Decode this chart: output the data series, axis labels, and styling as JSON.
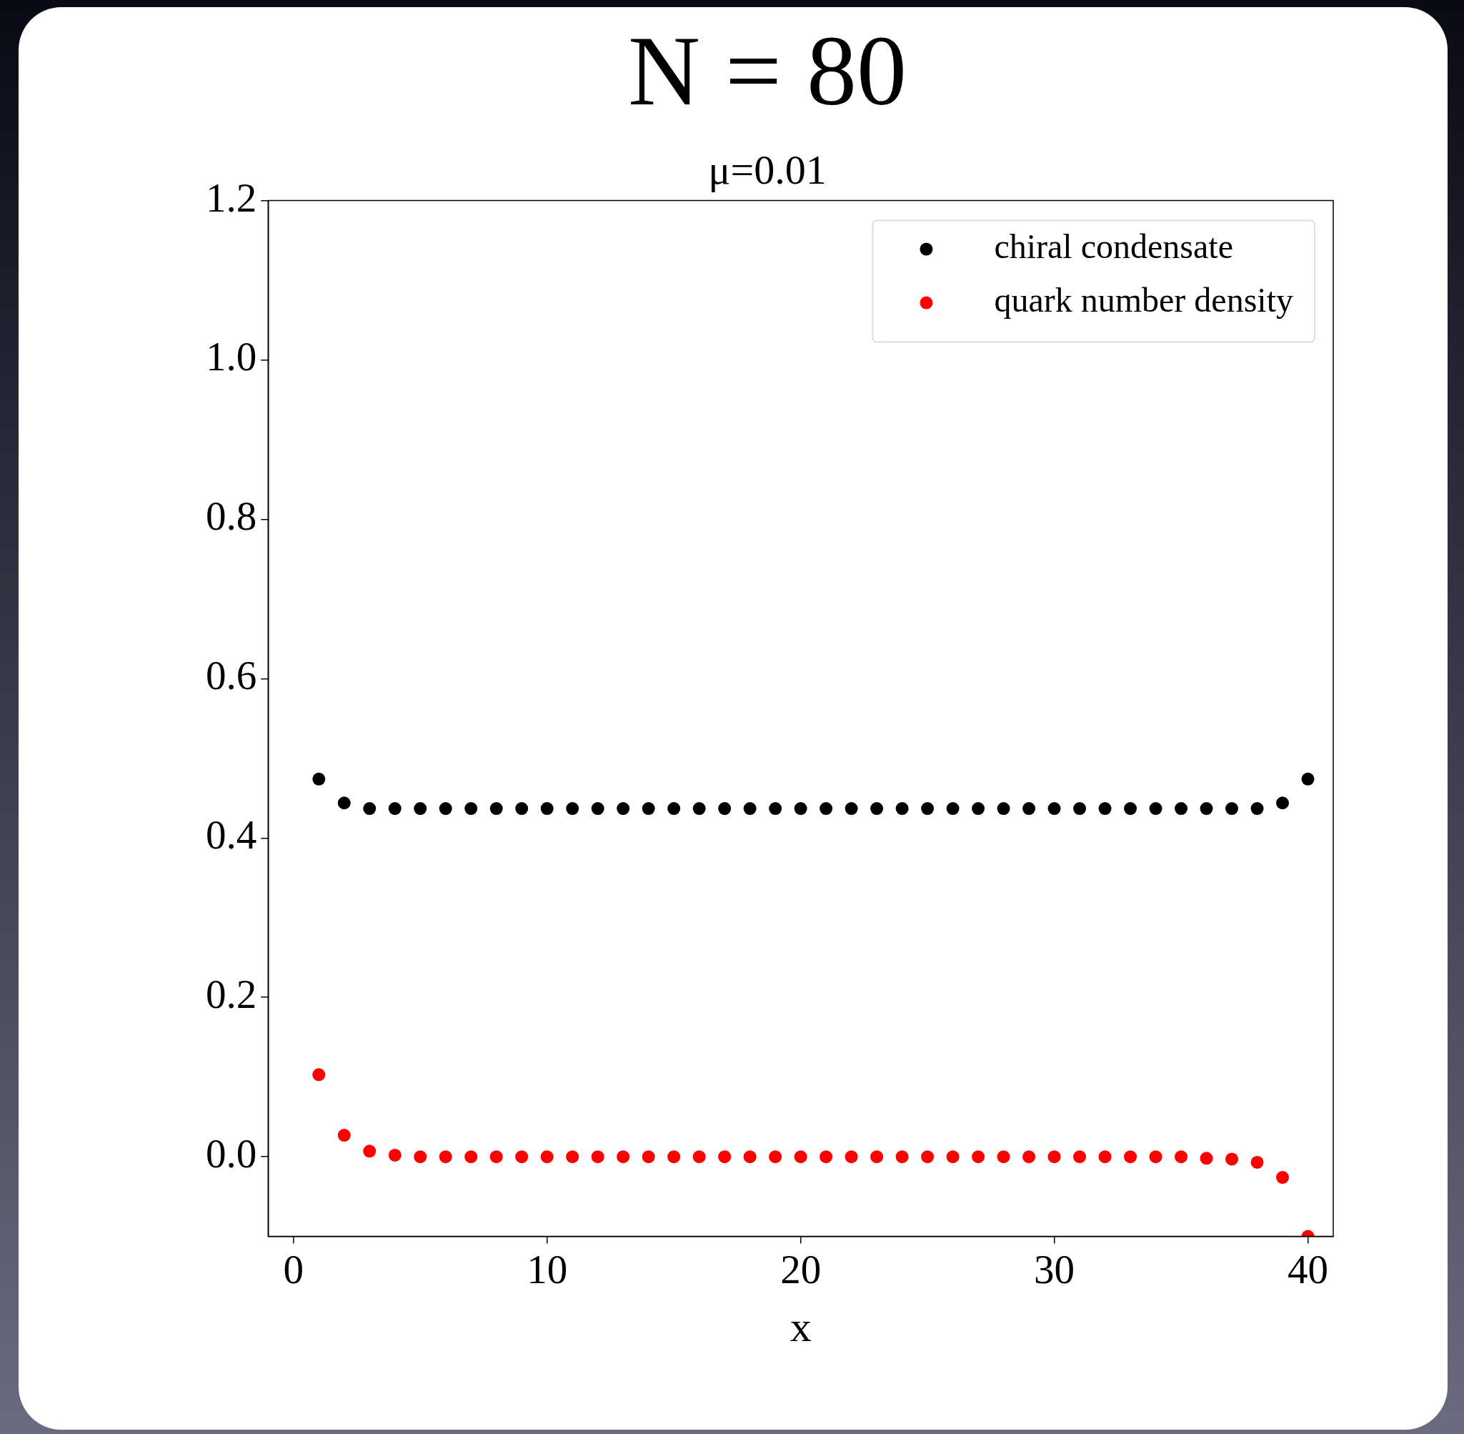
{
  "chart_data": {
    "type": "scatter",
    "title": "N = 80",
    "subtitle": "μ=0.01",
    "xlabel": "x",
    "x": [
      1,
      2,
      3,
      4,
      5,
      6,
      7,
      8,
      9,
      10,
      11,
      12,
      13,
      14,
      15,
      16,
      17,
      18,
      19,
      20,
      21,
      22,
      23,
      24,
      25,
      26,
      27,
      28,
      29,
      30,
      31,
      32,
      33,
      34,
      35,
      36,
      37,
      38,
      39,
      40
    ],
    "series": [
      {
        "name": "chiral condensate",
        "color": "#000000",
        "values": [
          0.474,
          0.444,
          0.437,
          0.437,
          0.437,
          0.437,
          0.437,
          0.437,
          0.437,
          0.437,
          0.437,
          0.437,
          0.437,
          0.437,
          0.437,
          0.437,
          0.437,
          0.437,
          0.437,
          0.437,
          0.437,
          0.437,
          0.437,
          0.437,
          0.437,
          0.437,
          0.437,
          0.437,
          0.437,
          0.437,
          0.437,
          0.437,
          0.437,
          0.437,
          0.437,
          0.437,
          0.437,
          0.437,
          0.444,
          0.474
        ]
      },
      {
        "name": "quark number density",
        "color": "#ff0000",
        "values": [
          0.103,
          0.027,
          0.007,
          0.002,
          0,
          0,
          0,
          0,
          0,
          0,
          0,
          0,
          0,
          0,
          0,
          0,
          0,
          0,
          0,
          0,
          0,
          0,
          0,
          0,
          0,
          0,
          0,
          0,
          0,
          0,
          0,
          0,
          0,
          0,
          0,
          -0.002,
          -0.003,
          -0.007,
          -0.026,
          -0.1
        ]
      }
    ],
    "xlim": [
      -1,
      41
    ],
    "xticks": [
      0,
      10,
      20,
      30,
      40
    ],
    "ylim": [
      -0.1,
      1.2
    ],
    "yticks": [
      {
        "value": 0,
        "label": "0.0"
      },
      {
        "value": 0.2,
        "label": "0.2"
      },
      {
        "value": 0.4,
        "label": "0.4"
      },
      {
        "value": 0.6,
        "label": "0.6"
      },
      {
        "value": 0.8,
        "label": "0.8"
      },
      {
        "value": 1,
        "label": "1.0"
      },
      {
        "value": 1.2,
        "label": "1.2"
      }
    ],
    "grid": false,
    "legend": "top right",
    "marker": "circle"
  }
}
